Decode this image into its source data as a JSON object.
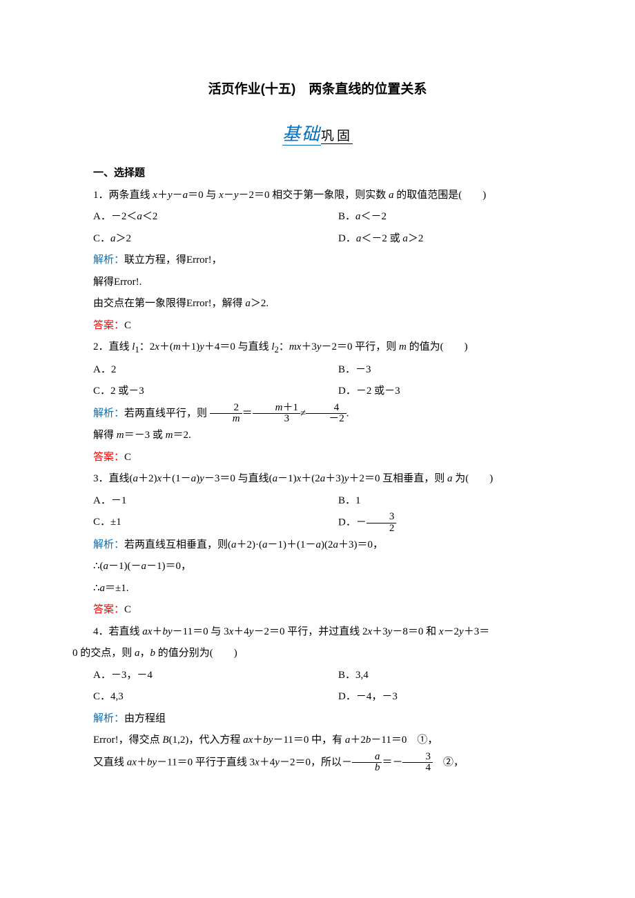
{
  "page": {
    "title": "活页作业(十五)　两条直线的位置关系",
    "subtitle_hand": "基础",
    "subtitle_rest": "巩固",
    "section1": "一、选择题",
    "colors": {
      "analysis": "#0070c0",
      "answer": "#ff0000",
      "text": "#000000",
      "bg": "#ffffff"
    },
    "font_sizes": {
      "title": 19,
      "body": 15,
      "subtitle_hand": 26,
      "subtitle_rest": 19
    }
  },
  "q1": {
    "stem": "1．两条直线 x＋y－a＝0 与 x－y－2＝0 相交于第一象限，则实数 a 的取值范围是(　　)",
    "A": "A．－2＜a＜2",
    "B": "B．a＜－2",
    "C": "C．a＞2",
    "D": "D．a＜－2 或 a＞2",
    "analysis_label": "解析：",
    "analysis1": "联立方程，得Error!，",
    "analysis2": "解得Error!.",
    "analysis3": "由交点在第一象限得Error!，解得 a＞2.",
    "answer_label": "答案：",
    "answer": "C"
  },
  "q2": {
    "stem": "2．直线 l₁：2x＋(m＋1)y＋4＝0 与直线 l₂：mx＋3y－2＝0 平行，则 m 的值为(　　)",
    "A": "A．2",
    "B": "B．－3",
    "C": "C．2 或－3",
    "D": "D．－2 或－3",
    "analysis_label": "解析：",
    "analysis_pre": "若两直线平行，则",
    "frac1_num": "2",
    "frac1_den": "m",
    "frac2_num": "m＋1",
    "frac2_den": "3",
    "frac3_num": "4",
    "frac3_den": "－2",
    "analysis_post": "解得 m＝－3 或 m＝2.",
    "answer_label": "答案：",
    "answer": "C"
  },
  "q3": {
    "stem": "3．直线(a＋2)x＋(1－a)y－3＝0 与直线(a－1)x＋(2a＋3)y＋2＝0 互相垂直，则 a 为(　　)",
    "A": "A．－1",
    "B": "B．1",
    "C": "C．±1",
    "D_pre": "D．－",
    "D_num": "3",
    "D_den": "2",
    "analysis_label": "解析：",
    "analysis1": "若两直线互相垂直，则(a＋2)·(a－1)＋(1－a)(2a＋3)＝0，",
    "analysis2": "∴(a－1)(－a－1)＝0，",
    "analysis3": "∴a＝±1.",
    "answer_label": "答案：",
    "answer": "C"
  },
  "q4": {
    "stem1": "4．若直线 ax＋by－11＝0 与 3x＋4y－2＝0 平行，并过直线 2x＋3y－8＝0 和 x－2y＋3＝",
    "stem2": "0 的交点，则 a，b 的值分别为(　　)",
    "A": "A．－3，－4",
    "B": "B．3,4",
    "C": "C．4,3",
    "D": "D．－4，－3",
    "analysis_label": "解析：",
    "analysis1": "由方程组",
    "analysis2": "Error!，得交点 B(1,2)，代入方程 ax＋by－11＝0 中，有 a＋2b－11＝0　①，",
    "analysis3_pre": "又直线 ax＋by－11＝0 平行于直线 3x＋4y－2＝0，所以－",
    "f1_num": "a",
    "f1_den": "b",
    "analysis3_mid": "＝－",
    "f2_num": "3",
    "f2_den": "4",
    "analysis3_post": "　②，"
  }
}
